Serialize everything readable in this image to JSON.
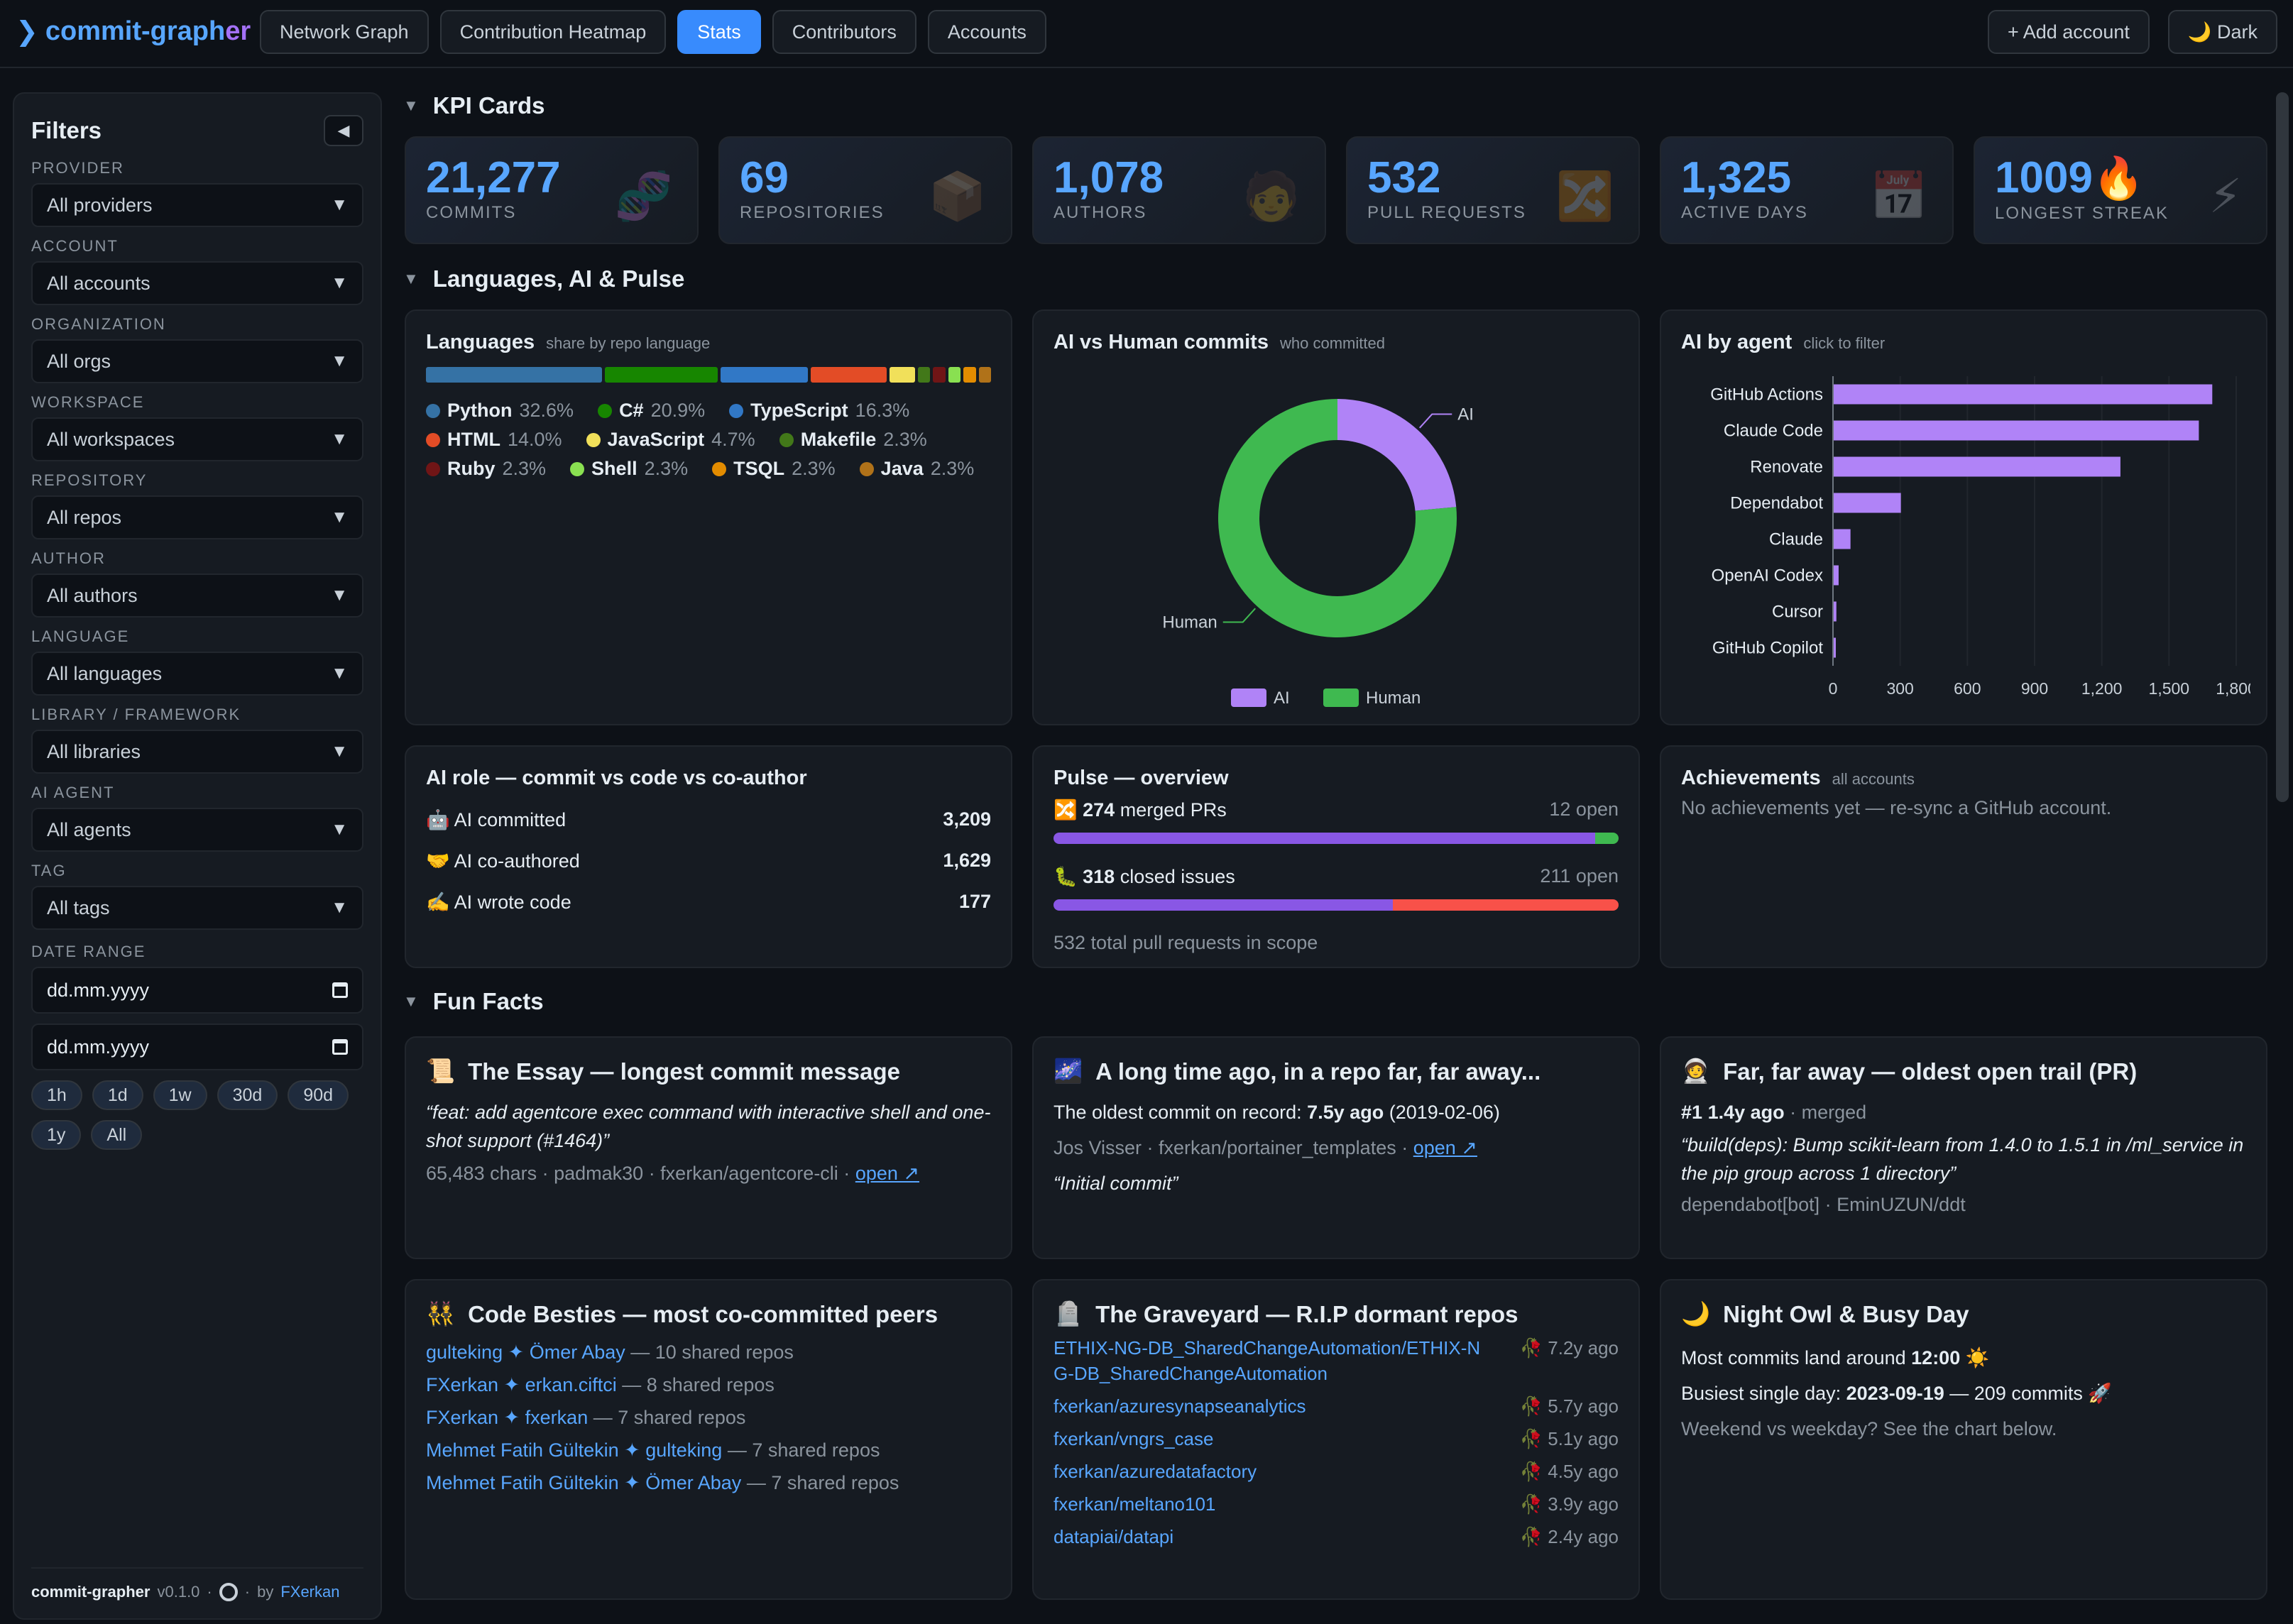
{
  "app": {
    "brand_a": "commit-graph",
    "brand_b": "er"
  },
  "nav": [
    {
      "label": "Network Graph"
    },
    {
      "label": "Contribution Heatmap"
    },
    {
      "label": "Stats"
    },
    {
      "label": "Contributors"
    },
    {
      "label": "Accounts"
    }
  ],
  "top_right": {
    "add_account": "+ Add account",
    "theme": "🌙 Dark"
  },
  "sidebar": {
    "title": "Filters",
    "collapse": "◀",
    "filters": [
      {
        "label": "PROVIDER",
        "value": "All providers"
      },
      {
        "label": "ACCOUNT",
        "value": "All accounts"
      },
      {
        "label": "ORGANIZATION",
        "value": "All orgs"
      },
      {
        "label": "WORKSPACE",
        "value": "All workspaces"
      },
      {
        "label": "REPOSITORY",
        "value": "All repos"
      },
      {
        "label": "AUTHOR",
        "value": "All authors"
      },
      {
        "label": "LANGUAGE",
        "value": "All languages"
      },
      {
        "label": "LIBRARY / FRAMEWORK",
        "value": "All libraries"
      },
      {
        "label": "AI AGENT",
        "value": "All agents"
      },
      {
        "label": "TAG",
        "value": "All tags"
      }
    ],
    "date_label": "DATE RANGE",
    "date_from": "dd.mm.yyyy",
    "date_to": "dd.mm.yyyy",
    "ranges": [
      "1h",
      "1d",
      "1w",
      "30d",
      "90d",
      "1y",
      "All"
    ],
    "footer_name": "commit-grapher",
    "footer_version": "v0.1.0",
    "footer_by": "by",
    "footer_author": "FXerkan"
  },
  "sections": {
    "kpi": "KPI Cards",
    "languages": "Languages, AI & Pulse",
    "fun": "Fun Facts"
  },
  "kpis": [
    {
      "value": "21,277",
      "label": "COMMITS",
      "icon": "🧬"
    },
    {
      "value": "69",
      "label": "REPOSITORIES",
      "icon": "📦"
    },
    {
      "value": "1,078",
      "label": "AUTHORS",
      "icon": "🧑"
    },
    {
      "value": "532",
      "label": "PULL REQUESTS",
      "icon": "🔀"
    },
    {
      "value": "1,325",
      "label": "ACTIVE DAYS",
      "icon": "📅"
    },
    {
      "value": "1009",
      "label": "LONGEST STREAK",
      "icon": "⚡",
      "extra": "🔥"
    }
  ],
  "languages": {
    "title": "Languages",
    "sub": "share by repo language",
    "items": [
      {
        "name": "Python",
        "pct": "32.6%",
        "share": 32.6,
        "color": "#3572a5"
      },
      {
        "name": "C#",
        "pct": "20.9%",
        "share": 20.9,
        "color": "#178600"
      },
      {
        "name": "TypeScript",
        "pct": "16.3%",
        "share": 16.3,
        "color": "#3178c6"
      },
      {
        "name": "HTML",
        "pct": "14.0%",
        "share": 14.0,
        "color": "#e34c26"
      },
      {
        "name": "JavaScript",
        "pct": "4.7%",
        "share": 4.7,
        "color": "#f1e05a"
      },
      {
        "name": "Makefile",
        "pct": "2.3%",
        "share": 2.3,
        "color": "#427819"
      },
      {
        "name": "Ruby",
        "pct": "2.3%",
        "share": 2.3,
        "color": "#701516"
      },
      {
        "name": "Shell",
        "pct": "2.3%",
        "share": 2.3,
        "color": "#89e051"
      },
      {
        "name": "TSQL",
        "pct": "2.3%",
        "share": 2.3,
        "color": "#e38c00"
      },
      {
        "name": "Java",
        "pct": "2.3%",
        "share": 2.3,
        "color": "#b07219"
      }
    ]
  },
  "ai_human": {
    "title": "AI vs Human commits",
    "sub": "who committed",
    "chart_data": {
      "type": "pie",
      "categories": [
        "AI",
        "Human"
      ],
      "values": [
        23.5,
        76.5
      ],
      "colors": [
        "#b083f7",
        "#3fb950"
      ],
      "legend": "bottom"
    }
  },
  "ai_agent": {
    "title": "AI by agent",
    "sub": "click to filter",
    "chart_data": {
      "type": "bar",
      "orientation": "horizontal",
      "categories": [
        "GitHub Actions",
        "Claude Code",
        "Renovate",
        "Dependabot",
        "Claude",
        "OpenAI Codex",
        "Cursor",
        "GitHub Copilot"
      ],
      "values": [
        1690,
        1630,
        1280,
        300,
        75,
        22,
        12,
        8
      ],
      "xticks": [
        "0",
        "300",
        "600",
        "900",
        "1,200",
        "1,500",
        "1,800"
      ],
      "xlim": [
        0,
        1800
      ],
      "color": "#b083f7",
      "grid": true
    }
  },
  "ai_role": {
    "title": "AI role — commit vs code vs co-author",
    "rows": [
      {
        "label": "🤖 AI committed",
        "value": "3,209"
      },
      {
        "label": "🤝 AI co-authored",
        "value": "1,629"
      },
      {
        "label": "✍️ AI wrote code",
        "value": "177"
      }
    ]
  },
  "pulse": {
    "title": "Pulse — overview",
    "prs_icon": "🔀",
    "prs_count": "274",
    "prs_label": "merged PRs",
    "prs_open": "12 open",
    "prs_share": 0.958,
    "issues_icon": "🐛",
    "issues_count": "318",
    "issues_label": "closed issues",
    "issues_open": "211 open",
    "issues_share": 0.601,
    "footer": "532 total pull requests in scope"
  },
  "achievements": {
    "title": "Achievements",
    "sub": "all accounts",
    "text": "No achievements yet — re-sync a GitHub account."
  },
  "facts": {
    "essay": {
      "icon": "📜",
      "title": "The Essay — longest commit message",
      "quote": "“feat: add agentcore exec command with interactive shell and one-shot support (#1464)”",
      "meta": "65,483 chars · padmak30 · fxerkan/agentcore-cli ·",
      "link": "open ↗"
    },
    "oldest": {
      "icon": "🌌",
      "title": "A long time ago, in a repo far, far away...",
      "line_a": "The oldest commit on record:",
      "line_b": "7.5y ago",
      "line_c": "(2019-02-06)",
      "meta": "Jos Visser · fxerkan/portainer_templates ·",
      "link": "open ↗",
      "quote": "“Initial commit”"
    },
    "far": {
      "icon": "🧑‍🚀",
      "title": "Far, far away — oldest open trail (PR)",
      "num": "#1",
      "age": "1.4y ago",
      "state": "· merged",
      "quote": "“build(deps): Bump scikit-learn from 1.4.0 to 1.5.1 in /ml_service in the pip group across 1 directory”",
      "meta": "dependabot[bot] · EminUZUN/ddt"
    },
    "besties": {
      "icon": "👯",
      "title": "Code Besties — most co-committed peers",
      "rows": [
        {
          "pair": "gulteking ✦ Ömer Abay",
          "count": "— 10 shared repos"
        },
        {
          "pair": "FXerkan ✦ erkan.ciftci",
          "count": "— 8 shared repos"
        },
        {
          "pair": "FXerkan ✦ fxerkan",
          "count": "— 7 shared repos"
        },
        {
          "pair": "Mehmet Fatih Gültekin ✦ gulteking",
          "count": "— 7 shared repos"
        },
        {
          "pair": "Mehmet Fatih Gültekin ✦ Ömer Abay",
          "count": "— 7 shared repos"
        }
      ]
    },
    "graveyard": {
      "icon": "🪦",
      "title": "The Graveyard — R.I.P dormant repos",
      "rows": [
        {
          "repo": "ETHIX-NG-DB_SharedChangeAutomation/ETHIX-NG-DB_SharedChangeAutomation",
          "age": "🥀 7.2y ago"
        },
        {
          "repo": "fxerkan/azuresynapseanalytics",
          "age": "🥀 5.7y ago"
        },
        {
          "repo": "fxerkan/vngrs_case",
          "age": "🥀 5.1y ago"
        },
        {
          "repo": "fxerkan/azuredatafactory",
          "age": "🥀 4.5y ago"
        },
        {
          "repo": "fxerkan/meltano101",
          "age": "🥀 3.9y ago"
        },
        {
          "repo": "datapiai/datapi",
          "age": "🥀 2.4y ago"
        }
      ]
    },
    "owl": {
      "icon": "🌙",
      "title": "Night Owl & Busy Day",
      "line1_a": "Most commits land around",
      "line1_b": "12:00",
      "line1_c": "☀️",
      "line2_a": "Busiest single day:",
      "line2_b": "2023-09-19",
      "line2_c": "— 209 commits 🚀",
      "line3": "Weekend vs weekday? See the chart below."
    }
  }
}
